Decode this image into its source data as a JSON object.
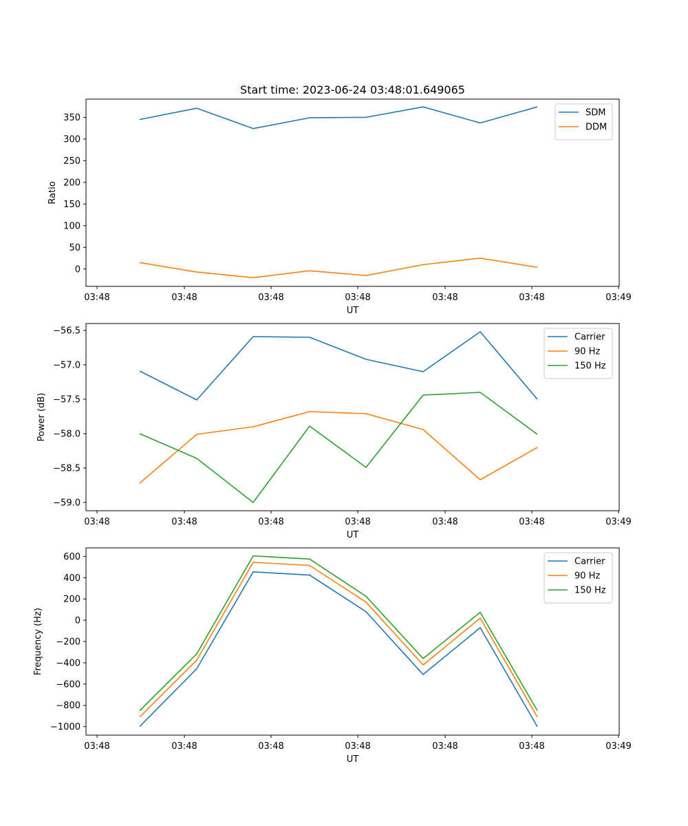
{
  "chart_data": [
    {
      "type": "line",
      "title": "Start time: 2023-06-24 03:48:01.649065",
      "xlabel": "UT",
      "ylabel": "Ratio",
      "x_tick_labels": [
        "03:48",
        "03:48",
        "03:48",
        "03:48",
        "03:48",
        "03:48",
        "03:49"
      ],
      "ylim": [
        -40,
        392
      ],
      "yticks": [
        0,
        50,
        100,
        150,
        200,
        250,
        300,
        350
      ],
      "legend_position": "top-right",
      "grid": false,
      "series": [
        {
          "name": "SDM",
          "color": "#1f77b4",
          "values": [
            345,
            371,
            324,
            349,
            350,
            374,
            337,
            374
          ]
        },
        {
          "name": "DDM",
          "color": "#ff7f0e",
          "values": [
            15,
            -7,
            -20,
            -4,
            -15,
            10,
            25,
            4
          ]
        }
      ]
    },
    {
      "type": "line",
      "title": "",
      "xlabel": "UT",
      "ylabel": "Power (dB)",
      "x_tick_labels": [
        "03:48",
        "03:48",
        "03:48",
        "03:48",
        "03:48",
        "03:48",
        "03:49"
      ],
      "ylim": [
        -59.12,
        -56.4
      ],
      "yticks": [
        -59.0,
        -58.5,
        -58.0,
        -57.5,
        -57.0,
        -56.5
      ],
      "ytick_labels": [
        "−59.0",
        "−58.5",
        "−58.0",
        "−57.5",
        "−57.0",
        "−56.5"
      ],
      "legend_position": "top-right",
      "grid": false,
      "series": [
        {
          "name": "Carrier",
          "color": "#1f77b4",
          "values": [
            -57.09,
            -57.51,
            -56.59,
            -56.6,
            -56.92,
            -57.1,
            -56.52,
            -57.5
          ]
        },
        {
          "name": "90 Hz",
          "color": "#ff7f0e",
          "values": [
            -58.72,
            -58.01,
            -57.9,
            -57.68,
            -57.71,
            -57.94,
            -58.67,
            -58.2
          ]
        },
        {
          "name": "150 Hz",
          "color": "#2ca02c",
          "values": [
            -58.0,
            -58.36,
            -59.0,
            -57.89,
            -58.49,
            -57.44,
            -57.4,
            -58.01
          ]
        }
      ]
    },
    {
      "type": "line",
      "title": "",
      "xlabel": "UT",
      "ylabel": "Frequency (Hz)",
      "x_tick_labels": [
        "03:48",
        "03:48",
        "03:48",
        "03:48",
        "03:48",
        "03:48",
        "03:49"
      ],
      "ylim": [
        -1080,
        680
      ],
      "yticks": [
        -1000,
        -800,
        -600,
        -400,
        -200,
        0,
        200,
        400,
        600
      ],
      "ytick_labels": [
        "−1000",
        "−800",
        "−600",
        "−400",
        "−200",
        "0",
        "200",
        "400",
        "600"
      ],
      "legend_position": "top-right",
      "grid": false,
      "series": [
        {
          "name": "Carrier",
          "color": "#1f77b4",
          "values": [
            -1000,
            -455,
            455,
            425,
            80,
            -510,
            -70,
            -1000
          ]
        },
        {
          "name": "90 Hz",
          "color": "#ff7f0e",
          "values": [
            -910,
            -375,
            545,
            515,
            170,
            -420,
            20,
            -910
          ]
        },
        {
          "name": "150 Hz",
          "color": "#2ca02c",
          "values": [
            -850,
            -315,
            605,
            575,
            225,
            -360,
            75,
            -850
          ]
        }
      ]
    }
  ]
}
